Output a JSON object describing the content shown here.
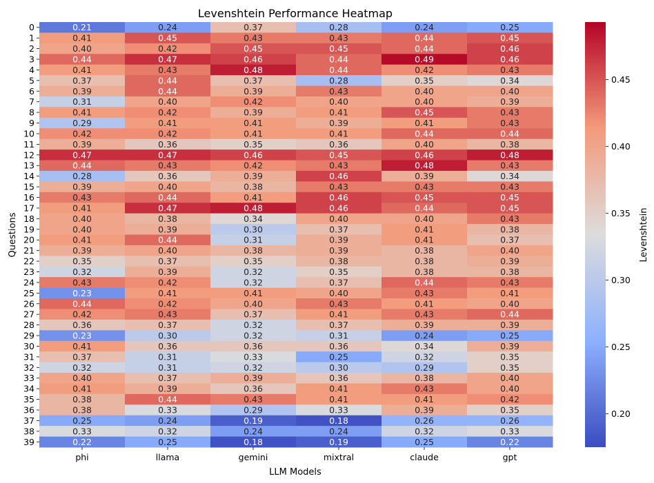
{
  "chart_data": {
    "type": "heatmap",
    "title": "Levenshtein Performance Heatmap",
    "xlabel": "LLM Models",
    "ylabel": "Questions",
    "colorbar_label": "Levenshtein",
    "colormap": "coolwarm",
    "value_range": [
      0.175,
      0.493
    ],
    "colorbar_ticks": [
      "0.20",
      "0.25",
      "0.30",
      "0.35",
      "0.40",
      "0.45"
    ],
    "x_categories": [
      "phi",
      "llama",
      "gemini",
      "mixtral",
      "claude",
      "gpt"
    ],
    "y_categories": [
      "0",
      "1",
      "2",
      "3",
      "4",
      "5",
      "6",
      "7",
      "8",
      "9",
      "10",
      "11",
      "12",
      "13",
      "14",
      "15",
      "16",
      "17",
      "18",
      "19",
      "20",
      "21",
      "22",
      "23",
      "24",
      "25",
      "26",
      "27",
      "28",
      "29",
      "30",
      "31",
      "32",
      "33",
      "34",
      "35",
      "36",
      "37",
      "38",
      "39"
    ],
    "values": [
      [
        0.21,
        0.24,
        0.37,
        0.28,
        0.24,
        0.25
      ],
      [
        0.41,
        0.45,
        0.43,
        0.43,
        0.44,
        0.45
      ],
      [
        0.4,
        0.42,
        0.45,
        0.45,
        0.44,
        0.46
      ],
      [
        0.44,
        0.47,
        0.46,
        0.44,
        0.49,
        0.46
      ],
      [
        0.41,
        0.43,
        0.48,
        0.44,
        0.42,
        0.43
      ],
      [
        0.37,
        0.44,
        0.37,
        0.28,
        0.35,
        0.34
      ],
      [
        0.39,
        0.44,
        0.39,
        0.43,
        0.4,
        0.4
      ],
      [
        0.31,
        0.4,
        0.42,
        0.4,
        0.4,
        0.39
      ],
      [
        0.41,
        0.42,
        0.39,
        0.41,
        0.45,
        0.43
      ],
      [
        0.29,
        0.41,
        0.41,
        0.39,
        0.41,
        0.43
      ],
      [
        0.42,
        0.42,
        0.41,
        0.41,
        0.44,
        0.44
      ],
      [
        0.39,
        0.36,
        0.35,
        0.36,
        0.4,
        0.38
      ],
      [
        0.47,
        0.47,
        0.46,
        0.45,
        0.46,
        0.48
      ],
      [
        0.44,
        0.43,
        0.42,
        0.43,
        0.48,
        0.43
      ],
      [
        0.28,
        0.36,
        0.39,
        0.46,
        0.39,
        0.34
      ],
      [
        0.39,
        0.4,
        0.38,
        0.43,
        0.43,
        0.43
      ],
      [
        0.43,
        0.44,
        0.41,
        0.46,
        0.45,
        0.45
      ],
      [
        0.41,
        0.47,
        0.48,
        0.46,
        0.44,
        0.45
      ],
      [
        0.4,
        0.38,
        0.34,
        0.4,
        0.4,
        0.43
      ],
      [
        0.4,
        0.39,
        0.3,
        0.37,
        0.41,
        0.38
      ],
      [
        0.41,
        0.44,
        0.31,
        0.39,
        0.41,
        0.37
      ],
      [
        0.39,
        0.4,
        0.38,
        0.39,
        0.38,
        0.4
      ],
      [
        0.35,
        0.37,
        0.35,
        0.38,
        0.38,
        0.39
      ],
      [
        0.32,
        0.39,
        0.32,
        0.35,
        0.38,
        0.38
      ],
      [
        0.43,
        0.42,
        0.32,
        0.37,
        0.44,
        0.43
      ],
      [
        0.23,
        0.41,
        0.41,
        0.4,
        0.43,
        0.41
      ],
      [
        0.44,
        0.42,
        0.4,
        0.43,
        0.41,
        0.4
      ],
      [
        0.42,
        0.43,
        0.37,
        0.41,
        0.43,
        0.44
      ],
      [
        0.36,
        0.37,
        0.32,
        0.37,
        0.39,
        0.39
      ],
      [
        0.23,
        0.3,
        0.32,
        0.31,
        0.24,
        0.25
      ],
      [
        0.41,
        0.36,
        0.36,
        0.36,
        0.34,
        0.39
      ],
      [
        0.37,
        0.31,
        0.33,
        0.25,
        0.32,
        0.35
      ],
      [
        0.32,
        0.31,
        0.32,
        0.3,
        0.29,
        0.35
      ],
      [
        0.4,
        0.37,
        0.39,
        0.36,
        0.38,
        0.4
      ],
      [
        0.41,
        0.39,
        0.36,
        0.41,
        0.43,
        0.4
      ],
      [
        0.38,
        0.44,
        0.43,
        0.41,
        0.41,
        0.42
      ],
      [
        0.38,
        0.33,
        0.29,
        0.33,
        0.39,
        0.35
      ],
      [
        0.25,
        0.24,
        0.19,
        0.18,
        0.26,
        0.26
      ],
      [
        0.33,
        0.32,
        0.24,
        0.24,
        0.32,
        0.33
      ],
      [
        0.22,
        0.25,
        0.18,
        0.19,
        0.25,
        0.22
      ]
    ]
  }
}
